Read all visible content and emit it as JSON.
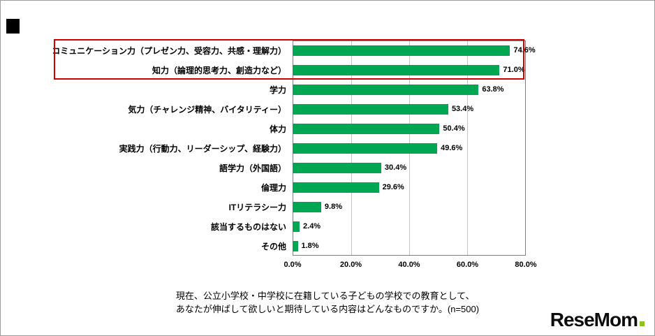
{
  "chart_data": {
    "type": "bar",
    "orientation": "horizontal",
    "categories": [
      "コミュニケーション力（プレゼン力、受容力、共感・理解力）",
      "知力（論理的思考力、創造力など）",
      "学力",
      "気力（チャレンジ精神、バイタリティー）",
      "体力",
      "実践力（行動力、リーダーシップ、経験力）",
      "語学力（外国語）",
      "倫理力",
      "ITリテラシー力",
      "該当するものはない",
      "その他"
    ],
    "values": [
      74.6,
      71.0,
      63.8,
      53.4,
      50.4,
      49.6,
      30.4,
      29.6,
      9.8,
      2.4,
      1.8
    ],
    "value_labels": [
      "74.6%",
      "71.0%",
      "63.8%",
      "53.4%",
      "50.4%",
      "49.6%",
      "30.4%",
      "29.6%",
      "9.8%",
      "2.4%",
      "1.8%"
    ],
    "x_ticks": [
      "0.0%",
      "20.0%",
      "40.0%",
      "60.0%",
      "80.0%"
    ],
    "xlim": [
      0,
      80
    ],
    "grid": true,
    "legend": "none",
    "bar_color": "#00a651",
    "highlight": {
      "rows": [
        0,
        1
      ],
      "color": "#d10000"
    },
    "caption_line1": "現在、公立小学校・中学校に在籍している子どもの学校での教育として、",
    "caption_line2": "あなたが伸ばして欲しいと期待している内容はどんなものですか。(n=500)"
  },
  "logo": {
    "text": "ReseMom",
    "dot_color": "#8dc21f"
  }
}
